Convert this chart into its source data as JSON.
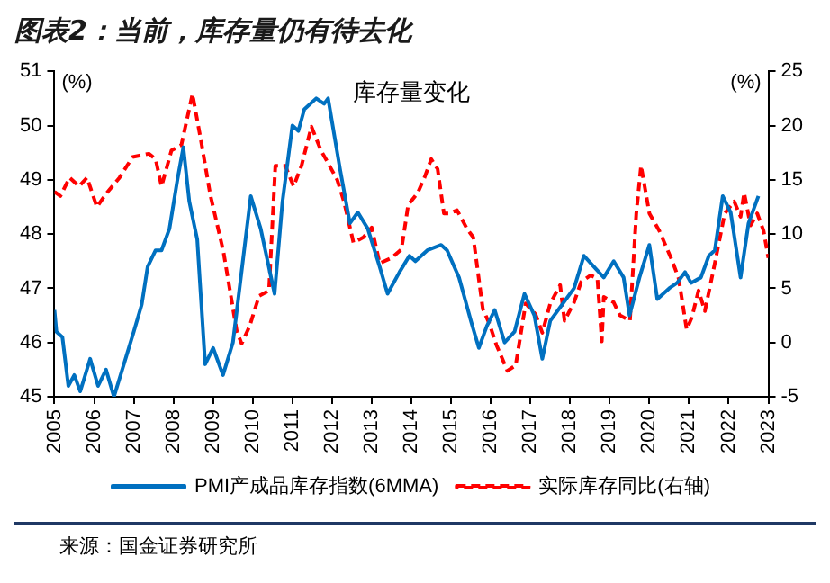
{
  "chart_data": {
    "type": "line",
    "title": "图表2：当前，库存量仍有待去化",
    "subtitle": "库存量变化",
    "ylabel": "(%)",
    "y2label": "(%)",
    "annotations": [
      "来源：国金证券研究所"
    ],
    "xlim": [
      2005,
      2023
    ],
    "xticks": [
      2005,
      2006,
      2007,
      2008,
      2009,
      2010,
      2011,
      2012,
      2013,
      2014,
      2015,
      2016,
      2017,
      2018,
      2019,
      2020,
      2021,
      2022,
      2023
    ],
    "ylim": [
      45,
      51
    ],
    "yticks": [
      45,
      46,
      47,
      48,
      49,
      50,
      51
    ],
    "y2lim": [
      -5,
      25
    ],
    "y2ticks": [
      -5,
      0,
      5,
      10,
      15,
      20,
      25
    ],
    "grid": false,
    "legend": "bottom",
    "marker": "none",
    "series": [
      {
        "name": "PMI产成品库存指数(6MMA)",
        "color": "#0070c0",
        "line_style": "solid",
        "x": [
          2005.0,
          2005.05,
          2005.2,
          2005.35,
          2005.5,
          2005.65,
          2005.9,
          2006.1,
          2006.3,
          2006.5,
          2006.75,
          2007.0,
          2007.2,
          2007.35,
          2007.55,
          2007.7,
          2007.9,
          2008.1,
          2008.25,
          2008.4,
          2008.6,
          2008.8,
          2009.0,
          2009.25,
          2009.5,
          2009.75,
          2009.95,
          2010.2,
          2010.55,
          2010.75,
          2011.0,
          2011.15,
          2011.3,
          2011.6,
          2011.8,
          2011.9,
          2012.2,
          2012.45,
          2012.65,
          2012.9,
          2013.2,
          2013.4,
          2013.7,
          2013.95,
          2014.1,
          2014.4,
          2014.75,
          2014.9,
          2015.2,
          2015.5,
          2015.7,
          2015.9,
          2016.1,
          2016.35,
          2016.6,
          2016.85,
          2017.1,
          2017.3,
          2017.5,
          2017.8,
          2018.1,
          2018.35,
          2018.6,
          2018.85,
          2019.1,
          2019.35,
          2019.5,
          2019.75,
          2020.0,
          2020.2,
          2020.5,
          2020.7,
          2020.9,
          2021.05,
          2021.3,
          2021.5,
          2021.65,
          2021.85,
          2022.05,
          2022.3,
          2022.5,
          2022.75
        ],
        "values": [
          46.6,
          46.2,
          46.1,
          45.2,
          45.4,
          45.1,
          45.7,
          45.2,
          45.5,
          45.0,
          45.6,
          46.2,
          46.7,
          47.4,
          47.7,
          47.7,
          48.1,
          49.0,
          49.6,
          48.6,
          47.9,
          45.6,
          45.9,
          45.4,
          46.0,
          47.5,
          48.7,
          48.1,
          46.9,
          48.6,
          50.0,
          49.9,
          50.3,
          50.5,
          50.4,
          50.5,
          49.2,
          48.2,
          48.4,
          48.1,
          47.4,
          46.9,
          47.3,
          47.6,
          47.5,
          47.7,
          47.8,
          47.7,
          47.2,
          46.4,
          45.9,
          46.3,
          46.6,
          46.0,
          46.2,
          46.9,
          46.5,
          45.7,
          46.4,
          46.7,
          47.0,
          47.6,
          47.4,
          47.2,
          47.5,
          47.2,
          46.5,
          47.2,
          47.8,
          46.8,
          47.0,
          47.1,
          47.3,
          47.1,
          47.2,
          47.6,
          47.7,
          48.7,
          48.4,
          47.2,
          48.2,
          48.7
        ]
      },
      {
        "name": "实际库存同比(右轴)",
        "color": "#ff0000",
        "line_style": "dashed",
        "axis": "y2",
        "x": [
          2005.0,
          2005.15,
          2005.38,
          2005.62,
          2005.82,
          2006.07,
          2006.3,
          2006.64,
          2006.97,
          2007.38,
          2007.55,
          2007.7,
          2007.95,
          2008.2,
          2008.48,
          2008.7,
          2008.93,
          2009.26,
          2009.6,
          2009.72,
          2009.92,
          2010.16,
          2010.41,
          2010.57,
          2010.82,
          2011.03,
          2011.23,
          2011.48,
          2011.72,
          2011.89,
          2012.13,
          2012.3,
          2012.54,
          2012.79,
          2013.0,
          2013.2,
          2013.5,
          2013.75,
          2013.92,
          2014.16,
          2014.33,
          2014.5,
          2014.66,
          2014.82,
          2014.95,
          2015.15,
          2015.4,
          2015.56,
          2015.8,
          2015.97,
          2016.14,
          2016.42,
          2016.63,
          2016.88,
          2017.13,
          2017.3,
          2017.5,
          2017.75,
          2017.86,
          2018.1,
          2018.28,
          2018.52,
          2018.69,
          2018.8,
          2018.85,
          2019.1,
          2019.26,
          2019.51,
          2019.67,
          2019.79,
          2020.0,
          2020.25,
          2020.58,
          2020.74,
          2020.94,
          2021.07,
          2021.24,
          2021.4,
          2021.65,
          2021.9,
          2022.14,
          2022.3,
          2022.39,
          2022.55,
          2022.72,
          2022.88,
          2023.0
        ],
        "values": [
          13.9,
          13.5,
          15.2,
          14.4,
          15.2,
          12.5,
          13.7,
          15.2,
          17.1,
          17.4,
          16.9,
          14.4,
          17.7,
          18.2,
          22.9,
          18.5,
          13.6,
          8.4,
          1.0,
          -0.1,
          1.5,
          4.3,
          4.8,
          16.3,
          16.3,
          14.4,
          16.3,
          19.9,
          17.7,
          16.6,
          15.0,
          13.0,
          9.2,
          9.7,
          10.6,
          7.3,
          7.8,
          8.6,
          12.7,
          13.8,
          15.2,
          16.9,
          16.0,
          11.9,
          11.9,
          12.2,
          10.5,
          9.7,
          3.1,
          1.7,
          -0.2,
          -2.6,
          -2.1,
          3.6,
          2.6,
          0.9,
          3.6,
          5.3,
          2.0,
          3.7,
          5.6,
          6.2,
          5.9,
          0.1,
          4.2,
          3.7,
          2.5,
          2.0,
          11.9,
          16.3,
          11.9,
          10.3,
          7.5,
          5.9,
          1.2,
          2.3,
          4.8,
          2.9,
          7.3,
          11.9,
          13.0,
          11.6,
          13.8,
          10.8,
          11.9,
          10.3,
          7.8
        ]
      }
    ]
  }
}
